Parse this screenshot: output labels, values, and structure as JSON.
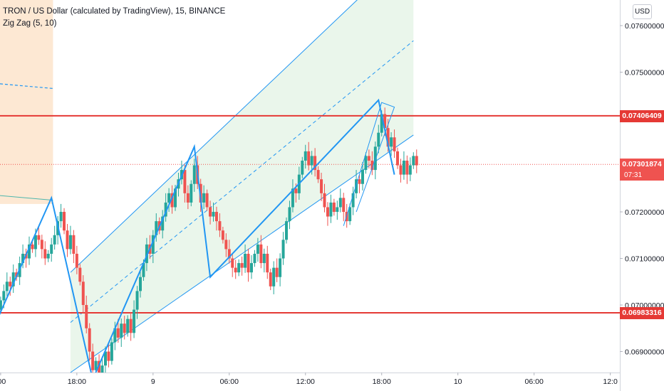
{
  "legend": {
    "symbol_line": "TRON / US Dollar (calculated by TradingView), 15, BINANCE",
    "indicator_line": "Zig Zag (5, 10)"
  },
  "toolbar": {
    "currency": "USD"
  },
  "colors": {
    "up": "#26a69a",
    "down": "#ef5350",
    "channel": "#2196f3",
    "channel_fill": "#e8f5e9",
    "rect_fill": "#fde8d3",
    "hline": "#e53935"
  },
  "chart_data": {
    "type": "candlestick",
    "symbol": "TRON / US Dollar",
    "timeframe": "15",
    "exchange": "BINANCE",
    "x_ticks": [
      {
        "label": ":00",
        "t": 0
      },
      {
        "label": "18:00",
        "t": 24
      },
      {
        "label": "9",
        "t": 48
      },
      {
        "label": "06:00",
        "t": 72
      },
      {
        "label": "12:00",
        "t": 96
      },
      {
        "label": "18:00",
        "t": 120
      },
      {
        "label": "10",
        "t": 144
      },
      {
        "label": "06:00",
        "t": 168
      },
      {
        "label": "12:0",
        "t": 192
      }
    ],
    "y_ticks": [
      {
        "label": "0.07600000",
        "value": 0.076
      },
      {
        "label": "0.07500000",
        "value": 0.075
      },
      {
        "label": "0.07200000",
        "value": 0.072
      },
      {
        "label": "0.07100000",
        "value": 0.071
      },
      {
        "label": "0.07000000",
        "value": 0.07
      },
      {
        "label": "0.06900000",
        "value": 0.069
      }
    ],
    "ylim": [
      0.06855,
      0.07655
    ],
    "xlim": [
      -0.2,
      195
    ],
    "close_prices": [
      0.0701,
      0.0703,
      0.0705,
      0.0704,
      0.0707,
      0.0706,
      0.0709,
      0.0711,
      0.071,
      0.0713,
      0.0712,
      0.0715,
      0.0714,
      0.0712,
      0.071,
      0.0711,
      0.0713,
      0.0715,
      0.0718,
      0.072,
      0.0716,
      0.0712,
      0.0715,
      0.0711,
      0.0708,
      0.0705,
      0.07,
      0.0695,
      0.069,
      0.0686,
      0.0688,
      0.0685,
      0.0687,
      0.069,
      0.0688,
      0.0692,
      0.0695,
      0.0693,
      0.0696,
      0.0694,
      0.0697,
      0.0694,
      0.0699,
      0.0703,
      0.0706,
      0.0709,
      0.0713,
      0.0711,
      0.0715,
      0.0718,
      0.0716,
      0.0719,
      0.0722,
      0.0724,
      0.0721,
      0.0725,
      0.0727,
      0.0729,
      0.0724,
      0.0722,
      0.0726,
      0.073,
      0.0726,
      0.0722,
      0.0724,
      0.0721,
      0.0719,
      0.072,
      0.0718,
      0.0716,
      0.0714,
      0.0712,
      0.071,
      0.0708,
      0.0707,
      0.0709,
      0.0708,
      0.0711,
      0.0707,
      0.0709,
      0.0711,
      0.0713,
      0.0709,
      0.0711,
      0.0707,
      0.0704,
      0.0708,
      0.0706,
      0.071,
      0.0714,
      0.0718,
      0.0721,
      0.0725,
      0.0724,
      0.0728,
      0.0731,
      0.0733,
      0.073,
      0.0732,
      0.0729,
      0.0727,
      0.0724,
      0.0721,
      0.0719,
      0.0722,
      0.072,
      0.0721,
      0.0723,
      0.072,
      0.0718,
      0.0721,
      0.0724,
      0.0727,
      0.0726,
      0.0729,
      0.0732,
      0.0731,
      0.0729,
      0.0734,
      0.0737,
      0.0741,
      0.0738,
      0.0734,
      0.0736,
      0.0733,
      0.073,
      0.0728,
      0.0731,
      0.0728,
      0.073,
      0.0732,
      0.073
    ],
    "annotations": {
      "hlines": [
        {
          "value": 0.07406409,
          "label": "0.07406409"
        },
        {
          "value": 0.06983316,
          "label": "0.06983316"
        }
      ],
      "last_price": {
        "value": 0.07301874,
        "label": "0.07301874",
        "countdown": "07:31"
      }
    }
  }
}
